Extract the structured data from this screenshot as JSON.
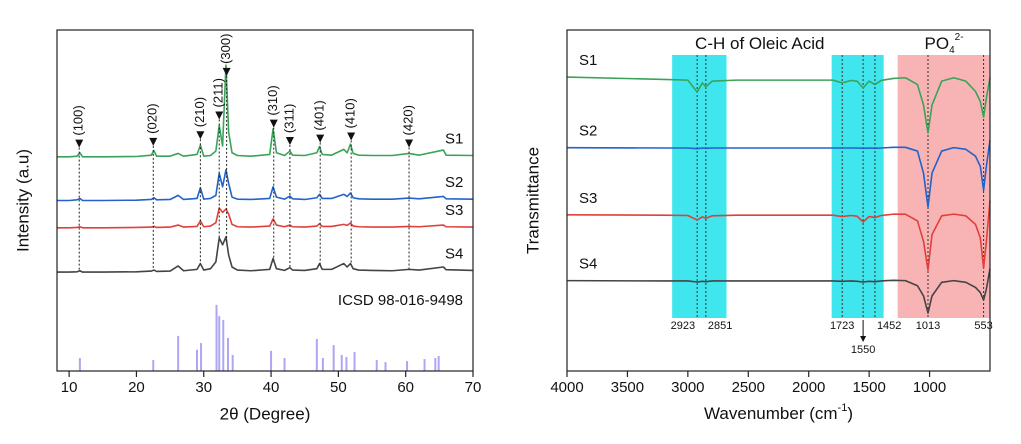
{
  "chart_data": [
    {
      "type": "line",
      "x_label": "2θ (Degree)",
      "y_label": "Intensity (a.u)",
      "xlim": [
        8.2,
        70
      ],
      "ylim": [
        0,
        100
      ],
      "xticks": [
        10,
        20,
        30,
        40,
        50,
        60,
        70
      ],
      "series_label_side": "right",
      "x": [
        8.2,
        10,
        11.2,
        11.6,
        12,
        15,
        20,
        22.2,
        22.6,
        23,
        25,
        26.2,
        27,
        29,
        29.5,
        30,
        31,
        31.8,
        32.3,
        32.8,
        33.3,
        33.7,
        34.2,
        35,
        37,
        39.8,
        40.3,
        40.8,
        42,
        42.8,
        43.2,
        45,
        46.8,
        47.2,
        47.6,
        49,
        50.8,
        51.3,
        51.8,
        52.2,
        53,
        55,
        58,
        60.5,
        62,
        65.6,
        66,
        70
      ],
      "series": [
        {
          "name": "S1",
          "color": "#3aa35a",
          "values": [
            62.8,
            62.8,
            63,
            64,
            62.8,
            62.8,
            62.9,
            63.3,
            64.6,
            63,
            63,
            63.8,
            63,
            63.5,
            66.2,
            63,
            63.2,
            64.5,
            72,
            66,
            89.7,
            70,
            64,
            63.2,
            63,
            63.5,
            71,
            64,
            63.2,
            64.5,
            63.3,
            63.2,
            64,
            65.8,
            63.5,
            63.3,
            65,
            64,
            66.5,
            63.8,
            63.3,
            63.2,
            63.2,
            63.8,
            63.3,
            64.8,
            63.3,
            63.2
          ]
        },
        {
          "name": "S2",
          "color": "#2363c9",
          "values": [
            50,
            50,
            50.2,
            50.6,
            50,
            50,
            50.1,
            50.3,
            50.8,
            50.2,
            50.3,
            51.5,
            50.3,
            50.6,
            53.7,
            50.4,
            50.6,
            51.5,
            58,
            54,
            59,
            55,
            51,
            50.4,
            50.3,
            50.6,
            54,
            51,
            50.4,
            51.3,
            50.5,
            50.3,
            50.8,
            51.8,
            50.6,
            50.6,
            51.8,
            51.2,
            52.2,
            50.8,
            50.5,
            50.4,
            50.4,
            50.7,
            50.5,
            51.2,
            50.5,
            50.4
          ]
        },
        {
          "name": "S3",
          "color": "#e0403a",
          "values": [
            42,
            42,
            42.1,
            42.3,
            42,
            42,
            42.1,
            42.2,
            42.4,
            42.1,
            42.2,
            42.8,
            42.2,
            42.4,
            44,
            42.3,
            42.5,
            43.5,
            47.8,
            46.5,
            47.5,
            46,
            43,
            42.3,
            42.2,
            42.5,
            44.6,
            42.8,
            42.3,
            42.8,
            42.3,
            42.2,
            42.5,
            43.2,
            42.4,
            42.4,
            43,
            42.7,
            43.4,
            42.5,
            42.3,
            42.2,
            42.2,
            42.4,
            42.3,
            42.8,
            42.3,
            42.2
          ]
        },
        {
          "name": "S4",
          "color": "#444444",
          "values": [
            29,
            29,
            29.1,
            29.4,
            29,
            29,
            29.1,
            29.3,
            29.6,
            29.2,
            29.3,
            30.8,
            29.4,
            29.8,
            31.5,
            29.6,
            30,
            32,
            39,
            37,
            39.3,
            34,
            30.5,
            29.6,
            29.4,
            29.8,
            33,
            30,
            29.5,
            30.3,
            29.6,
            29.5,
            30,
            31.5,
            29.8,
            29.8,
            31.5,
            30.5,
            31.5,
            30,
            29.6,
            29.5,
            29.4,
            29.8,
            29.6,
            30.5,
            29.7,
            29.5
          ]
        }
      ],
      "peak_markers": [
        {
          "text": "(100)",
          "x": 11.5
        },
        {
          "text": "(020)",
          "x": 22.5
        },
        {
          "text": "(210)",
          "x": 29.5
        },
        {
          "text": "(211)",
          "x": 32.3
        },
        {
          "text": "(300)",
          "x": 33.4
        },
        {
          "text": "(310)",
          "x": 40.4
        },
        {
          "text": "(311)",
          "x": 42.8
        },
        {
          "text": "(401)",
          "x": 47.3
        },
        {
          "text": "(410)",
          "x": 51.9
        },
        {
          "text": "(420)",
          "x": 60.5
        }
      ],
      "reference": {
        "name": "ICSD 98-016-9498",
        "color": "#aea6f2",
        "x": [
          11.6,
          22.5,
          26.2,
          29,
          29.6,
          31.9,
          32.3,
          32.9,
          33.6,
          34.3,
          40,
          42,
          46.8,
          47.7,
          49.3,
          50.5,
          51.2,
          52.4,
          55.7,
          57,
          60.2,
          62.8,
          64.4,
          64.9
        ],
        "values": [
          3.8,
          3.2,
          10.3,
          6.2,
          8.2,
          19.4,
          16.1,
          15,
          9.7,
          4.7,
          5.9,
          3.8,
          9.4,
          3.8,
          7.6,
          4.7,
          4.1,
          5.6,
          3.2,
          2.6,
          2.9,
          3.5,
          3.8,
          4.4
        ]
      }
    },
    {
      "type": "line",
      "x_label": {
        "pre": "Wavenumber (cm",
        "sup": "-1",
        "post": ")"
      },
      "y_label": "Transmittance",
      "xlim": [
        4000,
        500
      ],
      "ylim": [
        0,
        100
      ],
      "xticks": [
        4000,
        3500,
        3000,
        2500,
        2000,
        1500,
        1000
      ],
      "series_label_side": "left",
      "x": [
        4000,
        3200,
        3000,
        2923,
        2880,
        2851,
        2800,
        2600,
        1800,
        1723,
        1650,
        1600,
        1550,
        1500,
        1452,
        1400,
        1300,
        1200,
        1100,
        1050,
        1013,
        980,
        900,
        800,
        700,
        620,
        580,
        553,
        530,
        500
      ],
      "series": [
        {
          "name": "S1",
          "color": "#3aa35a",
          "values": [
            86.2,
            85.5,
            85.3,
            81.8,
            84.5,
            83.3,
            85,
            85.3,
            85.3,
            84.5,
            85.2,
            85,
            83,
            85,
            84,
            85.2,
            85.8,
            86,
            84,
            78,
            69.8,
            78,
            85,
            86,
            85,
            82,
            79,
            74.5,
            80,
            86
          ]
        },
        {
          "name": "S2",
          "color": "#2363c9",
          "values": [
            65.5,
            65.4,
            65.4,
            65.2,
            65.4,
            65.3,
            65.4,
            65.4,
            65.4,
            65.4,
            65.4,
            65.4,
            65.3,
            65.4,
            65.3,
            65.4,
            65.6,
            65.6,
            64.5,
            58,
            48.1,
            58,
            64.5,
            65.5,
            65,
            63,
            60,
            53,
            60,
            67.7
          ]
        },
        {
          "name": "S3",
          "color": "#e0403a",
          "values": [
            45.8,
            45.7,
            45.6,
            44.3,
            45.2,
            44.8,
            45.5,
            45.7,
            45.7,
            45.3,
            45.6,
            45.4,
            43.7,
            45.3,
            45,
            45.6,
            46,
            46,
            44,
            38,
            29.6,
            40,
            45.5,
            46,
            45.5,
            43,
            39,
            30.2,
            38,
            50
          ]
        },
        {
          "name": "S4",
          "color": "#444444",
          "values": [
            26.5,
            26.4,
            26.4,
            26.1,
            26.3,
            26.2,
            26.4,
            26.4,
            26.4,
            26.3,
            26.4,
            26.3,
            26.1,
            26.3,
            26.2,
            26.4,
            26.6,
            26.5,
            25,
            22,
            17,
            22,
            26,
            26.5,
            26,
            24.5,
            23,
            20.8,
            24,
            30
          ]
        }
      ],
      "regions": [
        {
          "range": [
            3130,
            2680
          ],
          "color": "#3fe6ee"
        },
        {
          "range": [
            1810,
            1380
          ],
          "color": "#3fe6ee"
        },
        {
          "range": [
            1264,
            504
          ],
          "color": "#f8b4b4"
        }
      ],
      "annotations": [
        {
          "text": "C-H of Oleic Acid",
          "x": 2405
        },
        {
          "text": "PO",
          "sub": "4",
          "sup": "2-",
          "x": 880
        }
      ],
      "peaks": [
        2923,
        2851,
        1723,
        1550,
        1452,
        1013,
        553
      ]
    }
  ]
}
